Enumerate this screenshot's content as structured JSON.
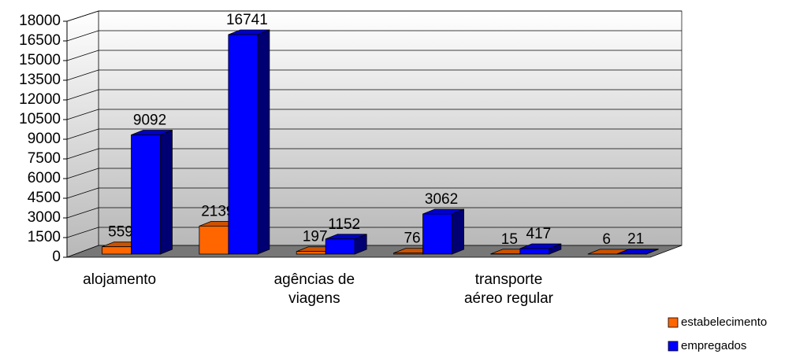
{
  "chart_data": {
    "type": "bar3d",
    "categories": [
      "alojamento",
      null,
      "agências de viagens",
      null,
      "transporte aéreo regular",
      null
    ],
    "series": [
      {
        "name": "estabelecimento",
        "color": "#ff6600",
        "values": [
          559,
          2139,
          197,
          76,
          15,
          6
        ]
      },
      {
        "name": "empregados",
        "color": "#0000ff",
        "values": [
          9092,
          16741,
          1152,
          3062,
          417,
          21
        ]
      }
    ],
    "ylim": [
      0,
      18000
    ],
    "yticks": [
      0,
      1500,
      3000,
      4500,
      6000,
      7500,
      9000,
      10500,
      12000,
      13500,
      15000,
      16500,
      18000
    ],
    "grid": true,
    "legend": "bottom-right"
  }
}
